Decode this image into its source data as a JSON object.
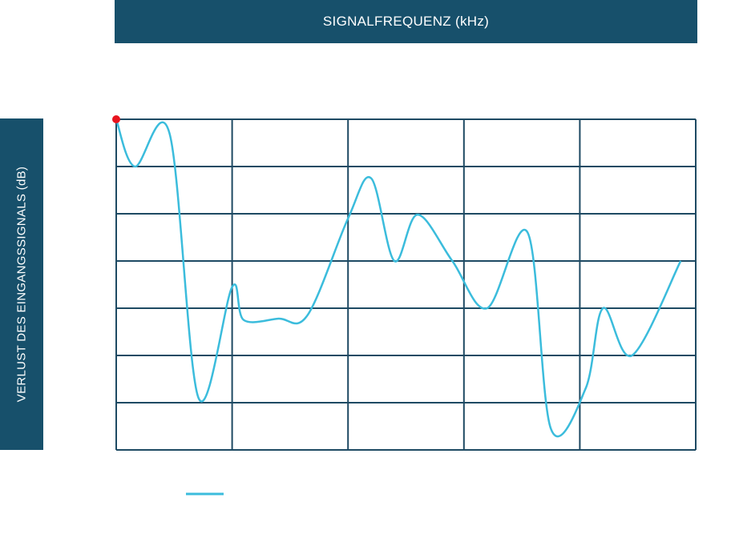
{
  "chart_data": {
    "type": "line",
    "title": "",
    "xlabel": "SIGNALFREQUENZ (kHz)",
    "ylabel": "VERLUST DES EINGANGSSIGNALS (dB)",
    "xlim": [
      0,
      5
    ],
    "ylim": [
      0,
      7
    ],
    "grid": true,
    "legend": "bottom-left",
    "colors": {
      "label_background": "#17506b",
      "grid": "#1e4a63",
      "line": "#3bbcdc",
      "start_marker": "#e8141e"
    },
    "series": [
      {
        "x": [
          0.0,
          0.16,
          0.46,
          0.71,
          1.0,
          1.1,
          1.4,
          1.65,
          2.0,
          2.2,
          2.4,
          2.6,
          2.9,
          3.2,
          3.55,
          3.75,
          4.05,
          4.2,
          4.45,
          4.87
        ],
        "y": [
          7.0,
          6.0,
          6.7,
          1.1,
          3.45,
          2.75,
          2.78,
          2.85,
          4.9,
          5.75,
          4.0,
          4.98,
          4.0,
          3.0,
          4.6,
          0.45,
          1.3,
          3.0,
          2.0,
          4.0
        ]
      }
    ]
  }
}
